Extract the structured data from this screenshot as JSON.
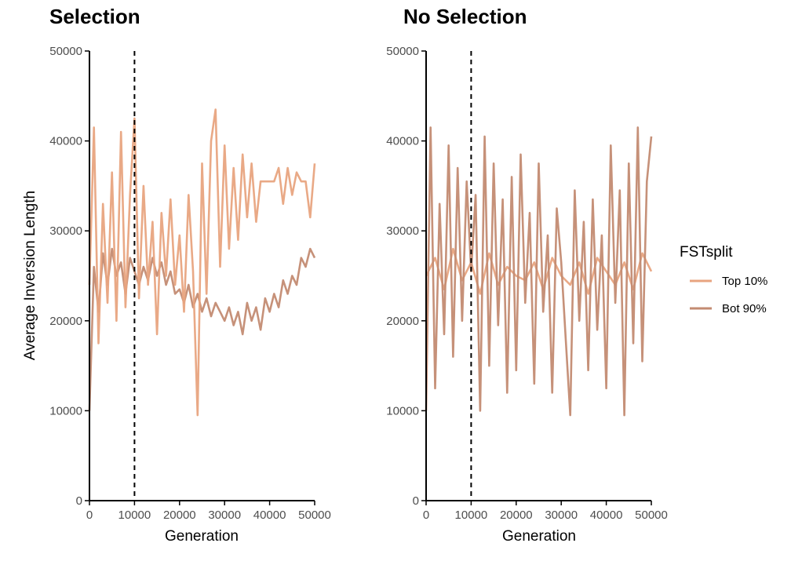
{
  "chart_data": [
    {
      "type": "line",
      "title": "Selection",
      "xlabel": "Generation",
      "ylabel": "Average Inversion Length",
      "xlim": [
        0,
        50000
      ],
      "ylim": [
        0,
        50000
      ],
      "x_ticks": [
        0,
        10000,
        20000,
        30000,
        40000,
        50000
      ],
      "y_ticks": [
        0,
        10000,
        20000,
        30000,
        40000,
        50000
      ],
      "vline": 10000,
      "grid": false,
      "series": [
        {
          "name": "Bot 90%",
          "color": "#c38b72",
          "x": [
            0,
            1000,
            2000,
            3000,
            4000,
            5000,
            6000,
            7000,
            8000,
            9000,
            10000,
            11000,
            12000,
            13000,
            14000,
            15000,
            16000,
            17000,
            18000,
            19000,
            20000,
            21000,
            22000,
            23000,
            24000,
            25000,
            26000,
            27000,
            28000,
            29000,
            30000,
            31000,
            32000,
            33000,
            34000,
            35000,
            36000,
            37000,
            38000,
            39000,
            40000,
            41000,
            42000,
            43000,
            44000,
            45000,
            46000,
            47000,
            48000,
            49000,
            50000
          ],
          "values": [
            10000,
            26000,
            21000,
            27500,
            24000,
            28000,
            25000,
            26500,
            23000,
            27000,
            25500,
            24000,
            26000,
            24500,
            27000,
            25000,
            26500,
            24000,
            25500,
            23000,
            23500,
            22000,
            24000,
            21500,
            23000,
            21000,
            22500,
            20500,
            22000,
            21000,
            20000,
            21500,
            19500,
            21000,
            18500,
            22000,
            20000,
            21500,
            19000,
            22500,
            21000,
            23000,
            21500,
            24500,
            23000,
            25000,
            24000,
            27000,
            26000,
            28000,
            27000
          ]
        },
        {
          "name": "Top 10%",
          "color": "#e8a480",
          "x": [
            0,
            1000,
            2000,
            3000,
            4000,
            5000,
            6000,
            7000,
            8000,
            9000,
            10000,
            11000,
            12000,
            13000,
            14000,
            15000,
            16000,
            17000,
            18000,
            19000,
            20000,
            21000,
            22000,
            23000,
            24000,
            25000,
            26000,
            27000,
            28000,
            29000,
            30000,
            31000,
            32000,
            33000,
            34000,
            35000,
            36000,
            37000,
            38000,
            39000,
            40000,
            41000,
            42000,
            43000,
            44000,
            45000,
            46000,
            47000,
            48000,
            49000,
            50000
          ],
          "values": [
            24000,
            41500,
            17500,
            33000,
            22000,
            36500,
            20000,
            41000,
            21500,
            34000,
            42500,
            22500,
            35000,
            24000,
            31000,
            18500,
            32000,
            25000,
            33500,
            24000,
            29500,
            21000,
            34000,
            25500,
            9500,
            37500,
            23000,
            40000,
            43500,
            26000,
            39500,
            28000,
            37000,
            29000,
            38500,
            31500,
            37500,
            31000,
            35500,
            35500,
            35500,
            35500,
            37000,
            33000,
            37000,
            34000,
            36500,
            35500,
            35500,
            31500,
            37500
          ]
        }
      ]
    },
    {
      "type": "line",
      "title": "No Selection",
      "xlabel": "Generation",
      "xlim": [
        0,
        50000
      ],
      "ylim": [
        0,
        50000
      ],
      "x_ticks": [
        0,
        10000,
        20000,
        30000,
        40000,
        50000
      ],
      "y_ticks": [
        0,
        10000,
        20000,
        30000,
        40000,
        50000
      ],
      "vline": 10000,
      "grid": false,
      "series": [
        {
          "name": "Top 10%",
          "color": "#e8a480",
          "x": [
            0,
            2000,
            4000,
            6000,
            8000,
            10000,
            12000,
            14000,
            16000,
            18000,
            20000,
            22000,
            24000,
            26000,
            28000,
            30000,
            32000,
            34000,
            36000,
            38000,
            40000,
            42000,
            44000,
            46000,
            48000,
            50000
          ],
          "values": [
            25000,
            27000,
            23500,
            28000,
            24500,
            26500,
            23000,
            27500,
            24000,
            26000,
            25000,
            24500,
            26500,
            23500,
            27000,
            25000,
            24000,
            26500,
            23000,
            27000,
            25500,
            24000,
            26500,
            23500,
            27500,
            25500
          ]
        },
        {
          "name": "Bot 90%",
          "color": "#c38b72",
          "x": [
            0,
            1000,
            2000,
            3000,
            4000,
            5000,
            6000,
            7000,
            8000,
            9000,
            10000,
            11000,
            12000,
            13000,
            14000,
            15000,
            16000,
            17000,
            18000,
            19000,
            20000,
            21000,
            22000,
            23000,
            24000,
            25000,
            26000,
            27000,
            28000,
            29000,
            30000,
            31000,
            32000,
            33000,
            34000,
            35000,
            36000,
            37000,
            38000,
            39000,
            40000,
            41000,
            42000,
            43000,
            44000,
            45000,
            46000,
            47000,
            48000,
            49000,
            50000
          ],
          "values": [
            10000,
            41500,
            12500,
            33000,
            18500,
            39500,
            16000,
            37000,
            20000,
            35500,
            25500,
            34000,
            10000,
            40500,
            15000,
            37500,
            19500,
            33500,
            12000,
            36000,
            14500,
            38500,
            22000,
            32000,
            13000,
            37500,
            21000,
            29500,
            12000,
            32500,
            26500,
            18000,
            9500,
            34500,
            20000,
            31000,
            14500,
            33500,
            19000,
            29500,
            12500,
            39500,
            22000,
            34500,
            9500,
            37500,
            17500,
            41500,
            15500,
            35500,
            40500
          ]
        }
      ]
    }
  ],
  "legend": {
    "title": "FSTsplit",
    "items": [
      {
        "label": "Top 10%",
        "color": "#e8a480"
      },
      {
        "label": "Bot 90%",
        "color": "#c38b72"
      }
    ]
  }
}
